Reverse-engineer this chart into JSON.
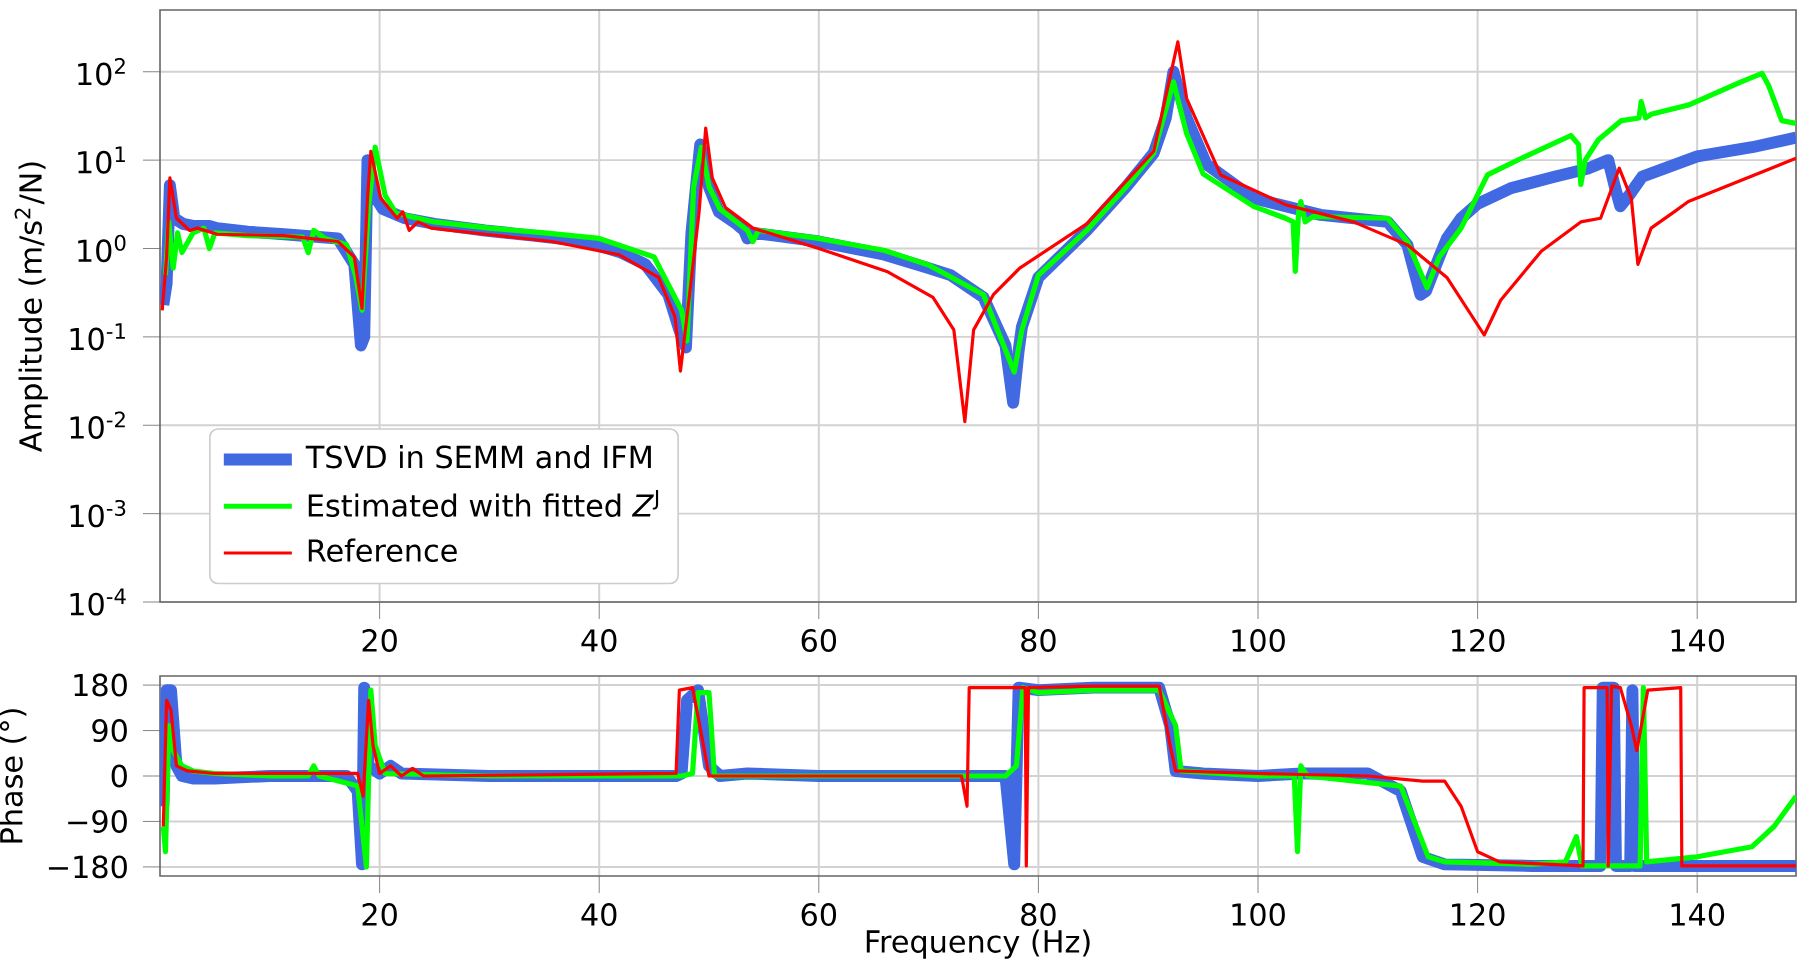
{
  "chart_data": [
    {
      "type": "line",
      "ylabel": "Amplitude (m/s$^{2}$/N)",
      "xlim": [
        0,
        149
      ],
      "ylim": [
        0.0001,
        500
      ],
      "log": "y",
      "grid": true,
      "legend": "bottom left",
      "xticks": [
        20,
        40,
        60,
        80,
        100,
        120,
        140
      ],
      "yticks": [
        {
          "value": 0.0001,
          "label": "10$^{-4}$"
        },
        {
          "value": 0.001,
          "label": "10$^{-3}$"
        },
        {
          "value": 0.01,
          "label": "10$^{-2}$"
        },
        {
          "value": 0.1,
          "label": "10$^{-1}$"
        },
        {
          "value": 1,
          "label": "10$^{0}$"
        },
        {
          "value": 10,
          "label": "10$^{1}$"
        },
        {
          "value": 100,
          "label": "10$^{2}$"
        }
      ],
      "series": [
        {
          "name": "TSVD in SEMM and IFM",
          "color": "#4169e1",
          "x": [
            0.3,
            0.6,
            0.9,
            1.3,
            2.1,
            3,
            4.5,
            5.2,
            8,
            11.3,
            16.2,
            17.7,
            18.3,
            18.6,
            18.9,
            19.5,
            20.3,
            22.3,
            25,
            29.6,
            34,
            38.7,
            42,
            44.2,
            46.3,
            47.3,
            47.9,
            48.4,
            49.2,
            50,
            50.9,
            52.5,
            53.2,
            53.5,
            54,
            56,
            60,
            66,
            70,
            72,
            75,
            77,
            77.7,
            78.2,
            78.5,
            80,
            84.4,
            88,
            90.5,
            91.6,
            92.3,
            93.5,
            95.3,
            99.6,
            105.7,
            111.8,
            113.6,
            114.8,
            115.3,
            116.5,
            117.2,
            118.5,
            120,
            123,
            127,
            130,
            131.9,
            132.5,
            133,
            133.8,
            135,
            140,
            145,
            149
          ],
          "values": [
            0.23,
            0.4,
            5.2,
            2.2,
            1.9,
            1.8,
            1.8,
            1.7,
            1.55,
            1.45,
            1.3,
            0.66,
            0.08,
            0.1,
            10,
            4,
            2.8,
            2.2,
            1.9,
            1.6,
            1.4,
            1.2,
            0.9,
            0.66,
            0.3,
            0.12,
            0.076,
            1.5,
            15,
            5,
            2.6,
            1.9,
            1.6,
            1.3,
            1.5,
            1.4,
            1.2,
            0.85,
            0.6,
            0.5,
            0.28,
            0.08,
            0.018,
            0.07,
            0.13,
            0.47,
            1.6,
            5,
            12,
            30,
            100,
            30,
            9,
            3.7,
            2.4,
            2,
            1.1,
            0.3,
            0.33,
            0.8,
            1.3,
            2.2,
            3.2,
            4.8,
            6.5,
            8,
            10,
            5,
            3,
            4,
            6.5,
            11,
            14,
            18
          ]
        },
        {
          "name": "Estimated with fitted *Z*$^{J}$",
          "color": "#00ff00",
          "x": [
            0.5,
            0.8,
            1.2,
            1.6,
            2,
            3,
            4,
            4.5,
            5,
            8,
            13,
            13.5,
            14,
            15,
            17,
            17.8,
            18.4,
            19,
            19.6,
            20.5,
            21.5,
            25,
            30,
            35,
            40,
            45,
            47.5,
            48,
            48.6,
            49.3,
            50,
            51,
            53.5,
            54,
            54.5,
            60,
            66,
            70,
            75,
            77.8,
            78.5,
            80,
            84.4,
            88,
            90.5,
            92.3,
            93.5,
            95,
            99.6,
            102.5,
            103.2,
            103.4,
            103.7,
            103.9,
            104.3,
            105,
            111.8,
            113.6,
            115.4,
            116.5,
            118.5,
            120.9,
            124,
            128.5,
            129.2,
            129.4,
            129.8,
            131,
            133.1,
            134.7,
            134.9,
            135.3,
            135.8,
            139.2,
            144,
            145.9,
            146.5,
            147.7,
            149
          ],
          "values": [
            0.5,
            2,
            0.6,
            1.5,
            0.9,
            1.5,
            1.7,
            1.0,
            1.5,
            1.4,
            1.35,
            0.9,
            1.6,
            1.3,
            1.1,
            0.5,
            0.2,
            3,
            14,
            4,
            2.5,
            2,
            1.7,
            1.5,
            1.3,
            0.8,
            0.2,
            0.09,
            5,
            14,
            5,
            2.8,
            1.6,
            1.2,
            1.6,
            1.3,
            0.95,
            0.65,
            0.3,
            0.04,
            0.12,
            0.5,
            1.6,
            5,
            12,
            77,
            20,
            7,
            3,
            2.2,
            2.0,
            0.55,
            2.6,
            3.4,
            2.0,
            2.3,
            2.2,
            1.2,
            0.36,
            0.8,
            1.7,
            6.8,
            10.5,
            19,
            15,
            5.3,
            10,
            17,
            28,
            30,
            46,
            30,
            33,
            42,
            77,
            96,
            70,
            28,
            26
          ]
        },
        {
          "name": "Reference",
          "color": "#ff0000",
          "x": [
            0.2,
            0.6,
            0.9,
            1.5,
            2.7,
            3.4,
            5.2,
            11.3,
            16.2,
            17.7,
            18.4,
            18.9,
            19.2,
            20.1,
            21.6,
            22.1,
            22.7,
            23.5,
            24.7,
            29.6,
            35.7,
            41.8,
            45.4,
            46.9,
            47.4,
            48.2,
            49.1,
            49.7,
            50.3,
            51.5,
            54,
            60,
            66.2,
            70.4,
            72.3,
            73.3,
            74.1,
            75.9,
            78.3,
            84.4,
            90.5,
            92.7,
            93.5,
            96.6,
            102.6,
            108.7,
            113.6,
            117.2,
            120.6,
            122.1,
            125.8,
            129.4,
            131.2,
            132.9,
            134,
            134.6,
            135.8,
            137.9,
            139.2,
            149
          ],
          "values": [
            0.2,
            0.8,
            6.3,
            2.2,
            1.6,
            1.7,
            1.45,
            1.4,
            1.2,
            0.8,
            0.21,
            3.7,
            12.6,
            3.7,
            2.2,
            2.6,
            1.6,
            2.0,
            1.7,
            1.45,
            1.2,
            0.85,
            0.47,
            0.17,
            0.041,
            0.28,
            2.6,
            23,
            6.3,
            2.9,
            1.7,
            1.0,
            0.55,
            0.28,
            0.12,
            0.011,
            0.12,
            0.3,
            0.6,
            1.9,
            12.6,
            218,
            50,
            6.8,
            3.1,
            2.0,
            1.1,
            0.47,
            0.105,
            0.26,
            0.93,
            2.0,
            2.2,
            8.1,
            3.7,
            0.66,
            1.7,
            2.6,
            3.4,
            10.5
          ]
        }
      ]
    },
    {
      "type": "line",
      "xlabel": "Frequency (Hz)",
      "ylabel": "Phase (°)",
      "xlim": [
        0,
        149
      ],
      "ylim": [
        -198,
        198
      ],
      "grid": true,
      "xticks": [
        20,
        40,
        60,
        80,
        100,
        120,
        140
      ],
      "yticks": [
        {
          "value": -180,
          "label": "−180"
        },
        {
          "value": -90,
          "label": "−90"
        },
        0,
        90,
        180
      ],
      "series": [
        {
          "color": "#4169e1",
          "x": [
            0.3,
            0.6,
            1.0,
            1.5,
            2,
            3,
            5,
            10,
            17,
            18,
            18.4,
            18.6,
            19,
            20,
            21,
            22,
            30,
            47,
            47.5,
            48,
            49,
            50,
            51,
            53.5,
            60,
            70,
            77,
            77.8,
            78.2,
            80,
            85,
            91,
            92,
            92.5,
            95,
            100,
            104,
            110,
            113,
            115,
            117,
            125,
            131.2,
            131.4,
            132.4,
            132.6,
            133.9,
            134.1,
            134.3,
            134.6,
            140,
            149
          ],
          "values": [
            -60,
            170,
            170,
            20,
            0,
            -5,
            -5,
            0,
            0,
            -30,
            -175,
            175,
            20,
            5,
            20,
            5,
            0,
            0,
            5,
            150,
            170,
            20,
            0,
            5,
            0,
            0,
            0,
            -175,
            175,
            170,
            175,
            175,
            100,
            10,
            5,
            0,
            5,
            5,
            -30,
            -160,
            -175,
            -178,
            -178,
            175,
            175,
            -178,
            -178,
            170,
            -178,
            -178,
            -178,
            -178
          ]
        },
        {
          "color": "#00ff00",
          "x": [
            0.3,
            0.5,
            0.8,
            1.2,
            2,
            3,
            5,
            10,
            13.5,
            14,
            14.5,
            18,
            18.8,
            19.2,
            19.6,
            20.5,
            30,
            47.5,
            48.5,
            49,
            50,
            50.5,
            60,
            77,
            78,
            78.6,
            80,
            85,
            91,
            92.5,
            93,
            100,
            103.3,
            103.6,
            103.9,
            104.5,
            113,
            115.5,
            117,
            125,
            128,
            129,
            129.5,
            134.8,
            135.1,
            135.4,
            140,
            145,
            147,
            149
          ],
          "values": [
            -100,
            -150,
            100,
            50,
            20,
            10,
            5,
            0,
            0,
            20,
            0,
            -20,
            -180,
            170,
            60,
            5,
            0,
            0,
            5,
            165,
            165,
            0,
            0,
            0,
            20,
            175,
            165,
            170,
            170,
            100,
            10,
            0,
            0,
            -150,
            20,
            0,
            -20,
            -160,
            -170,
            -175,
            -170,
            -120,
            -178,
            -178,
            175,
            -170,
            -160,
            -140,
            -100,
            -40
          ]
        },
        {
          "color": "#ff0000",
          "x": [
            0.3,
            0.6,
            1.0,
            1.5,
            2.5,
            5,
            18,
            18.5,
            19,
            19.4,
            20,
            21,
            22,
            23,
            24,
            47,
            47.3,
            48.5,
            49.5,
            50,
            73,
            73.5,
            73.7,
            78.8,
            78.9,
            79.1,
            85,
            91,
            92,
            92.5,
            100,
            110,
            115,
            117,
            118.5,
            120,
            122,
            129.6,
            129.7,
            131.8,
            131.9,
            132.2,
            133,
            134,
            134.5,
            135.5,
            138.5,
            138.6,
            149
          ],
          "values": [
            -100,
            150,
            130,
            20,
            10,
            5,
            5,
            -40,
            150,
            60,
            5,
            20,
            0,
            15,
            0,
            5,
            170,
            175,
            60,
            0,
            0,
            -60,
            175,
            175,
            -178,
            175,
            178,
            178,
            60,
            10,
            5,
            0,
            -10,
            -10,
            -60,
            -150,
            -170,
            -178,
            175,
            175,
            -178,
            178,
            175,
            100,
            50,
            170,
            175,
            -178,
            -178
          ]
        }
      ]
    }
  ]
}
